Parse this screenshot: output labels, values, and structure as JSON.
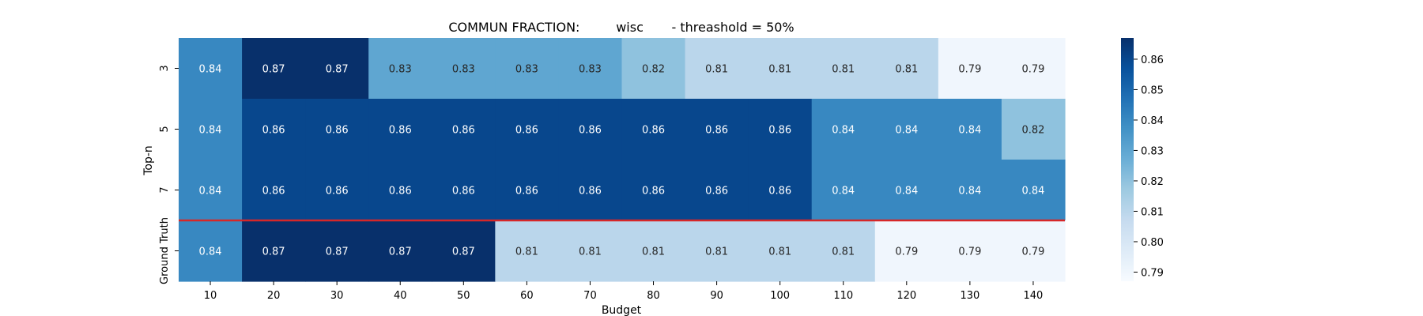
{
  "chart_data": {
    "type": "heatmap",
    "title": "COMMUN FRACTION:         wisc       - threashold = 50%",
    "xlabel": "Budget",
    "ylabel": "Top-n",
    "x_categories": [
      "10",
      "20",
      "30",
      "40",
      "50",
      "60",
      "70",
      "80",
      "90",
      "100",
      "110",
      "120",
      "130",
      "140"
    ],
    "y_categories": [
      "3",
      "5",
      "7",
      "Ground Truth"
    ],
    "values": [
      [
        0.84,
        0.87,
        0.87,
        0.83,
        0.83,
        0.83,
        0.83,
        0.82,
        0.81,
        0.81,
        0.81,
        0.81,
        0.79,
        0.79
      ],
      [
        0.84,
        0.86,
        0.86,
        0.86,
        0.86,
        0.86,
        0.86,
        0.86,
        0.86,
        0.86,
        0.84,
        0.84,
        0.84,
        0.82
      ],
      [
        0.84,
        0.86,
        0.86,
        0.86,
        0.86,
        0.86,
        0.86,
        0.86,
        0.86,
        0.86,
        0.84,
        0.84,
        0.84,
        0.84
      ],
      [
        0.84,
        0.87,
        0.87,
        0.87,
        0.87,
        0.81,
        0.81,
        0.81,
        0.81,
        0.81,
        0.81,
        0.79,
        0.79,
        0.79
      ]
    ],
    "colormap": "Blues",
    "vmin": 0.787,
    "vmax": 0.867,
    "colorbar_ticks": [
      "0.86",
      "0.85",
      "0.84",
      "0.83",
      "0.82",
      "0.81",
      "0.80",
      "0.79"
    ],
    "colorbar_tick_values": [
      0.86,
      0.85,
      0.84,
      0.83,
      0.82,
      0.81,
      0.8,
      0.79
    ],
    "separator_color": "#d62728",
    "annotation_light_color": "#ffffff",
    "annotation_dark_color": "#262626"
  }
}
